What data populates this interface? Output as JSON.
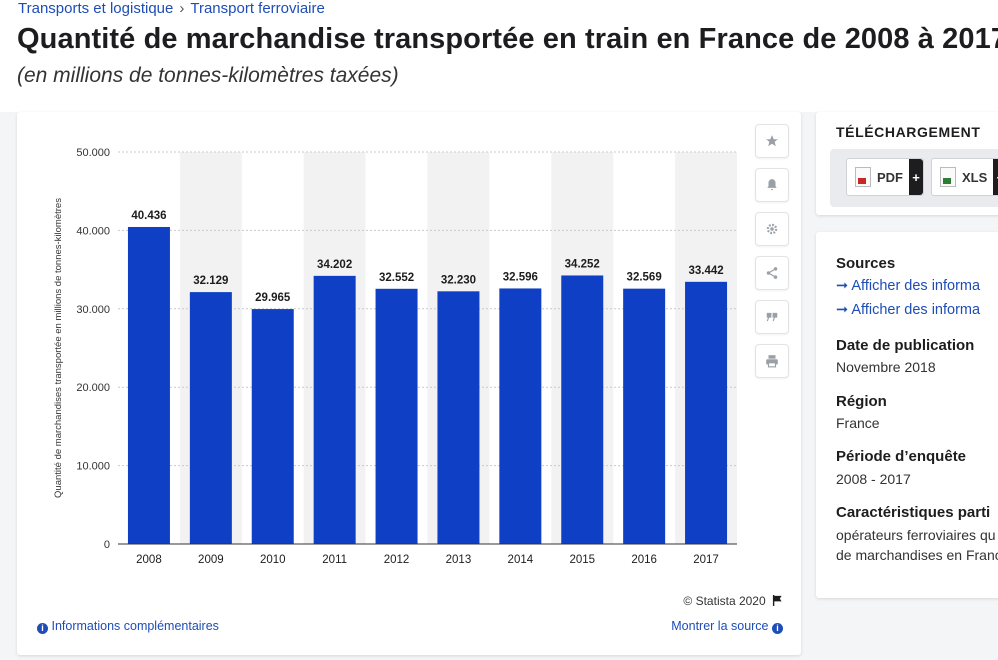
{
  "breadcrumb": {
    "item1": "Transports et logistique",
    "separator": "›",
    "item2": "Transport ferroviaire"
  },
  "page_title": "Quantité de marchandise transportée en train en France de 2008 à 2017",
  "subtitle": "(en millions de tonnes-kilomètres taxées)",
  "chart_data": {
    "type": "bar",
    "categories": [
      "2008",
      "2009",
      "2010",
      "2011",
      "2012",
      "2013",
      "2014",
      "2015",
      "2016",
      "2017"
    ],
    "values": [
      40436,
      32129,
      29965,
      34202,
      32552,
      32230,
      32596,
      34252,
      32569,
      33442
    ],
    "value_labels": [
      "40.436",
      "32.129",
      "29.965",
      "34.202",
      "32.552",
      "32.230",
      "32.596",
      "34.252",
      "32.569",
      "33.442"
    ],
    "ylabel": "Quantité de marchandises transportée en millions de tonnes-kilomètres",
    "ylim": [
      0,
      50000
    ],
    "yticks": [
      0,
      10000,
      20000,
      30000,
      40000,
      50000
    ],
    "ytick_labels": [
      "0",
      "10.000",
      "20.000",
      "30.000",
      "40.000",
      "50.000"
    ],
    "bar_color": "#0f3fc4",
    "grid": true,
    "alternating_column_shading": true
  },
  "toolbar": {
    "icons": [
      "star-icon",
      "bell-icon",
      "gear-icon",
      "share-icon",
      "quote-icon",
      "print-icon"
    ]
  },
  "copyright": "© Statista 2020",
  "info_link": "Informations complémentaires",
  "source_link": "Montrer la source",
  "download": {
    "title": "TÉLÉCHARGEMENT",
    "pdf_label": "PDF",
    "xls_label": "XLS",
    "plus": "+"
  },
  "meta": {
    "sources_heading": "Sources",
    "sources_link1": "➞ Afficher des informa",
    "sources_link2": "➞ Afficher des informa",
    "date_heading": "Date de publication",
    "date_value": "Novembre 2018",
    "region_heading": "Région",
    "region_value": "France",
    "period_heading": "Période d’enquête",
    "period_value": "2008 - 2017",
    "charac_heading": "Caractéristiques parti",
    "charac_line1": "opérateurs ferroviaires qu",
    "charac_line2": "de marchandises en Franc"
  },
  "colors": {
    "accent": "#1e4db7",
    "bar": "#0f3fc4"
  }
}
